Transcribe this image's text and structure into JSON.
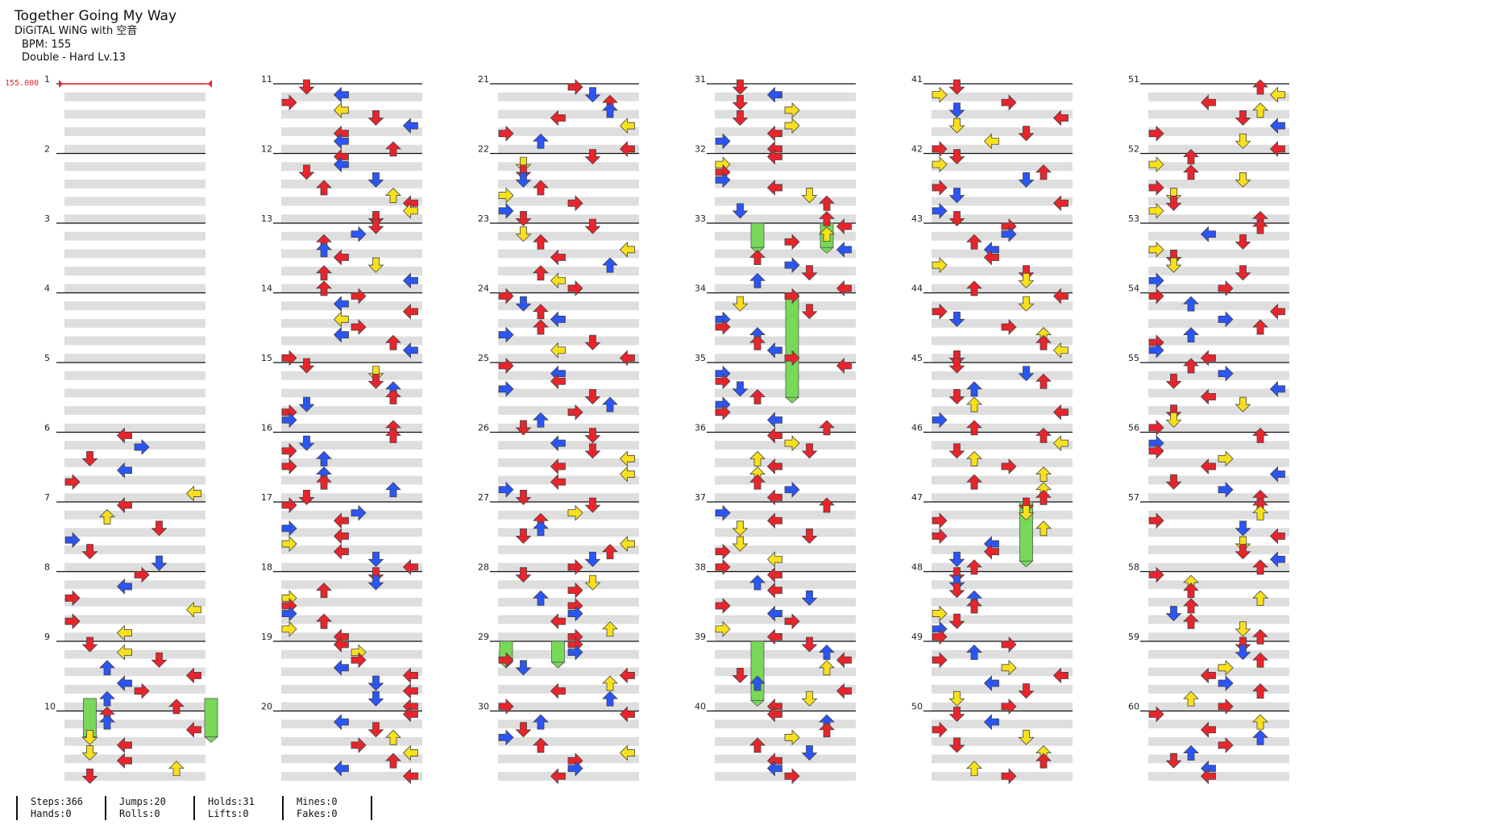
{
  "song": {
    "title": "Together Going My Way",
    "artist": "DiGiTAL WiNG with 空音",
    "bpm": "BPM: 155",
    "difficulty": "Double - Hard Lv.13"
  },
  "bpm_change_label": "155.000",
  "colors": {
    "red_note": "#e8242c",
    "blue_note": "#2b55f5",
    "yellow_note": "#f8e01c",
    "hold_body": "#78d858",
    "lane_stripe": "#dedede",
    "bpm_marker": "#e8242c"
  },
  "measures": [
    "1",
    "2",
    "3",
    "4",
    "5",
    "6",
    "7",
    "8",
    "9",
    "10",
    "11",
    "12",
    "13",
    "14",
    "15",
    "16",
    "17",
    "18",
    "19",
    "20",
    "21",
    "22",
    "23",
    "24",
    "25",
    "26",
    "27",
    "28",
    "29",
    "30",
    "31",
    "32",
    "33",
    "34",
    "35",
    "36",
    "37",
    "38",
    "39",
    "40",
    "41",
    "42",
    "43",
    "44",
    "45",
    "46",
    "47",
    "48",
    "49",
    "50",
    "51",
    "52",
    "53",
    "54",
    "55",
    "56",
    "57",
    "58",
    "59",
    "60"
  ],
  "stats": [
    {
      "a": "Steps:366",
      "b": "Hands:0"
    },
    {
      "a": "Jumps:20",
      "b": "Rolls:0"
    },
    {
      "a": "Holds:31",
      "b": "Lifts:0"
    },
    {
      "a": "Mines:0",
      "b": "Fakes:0"
    }
  ]
}
